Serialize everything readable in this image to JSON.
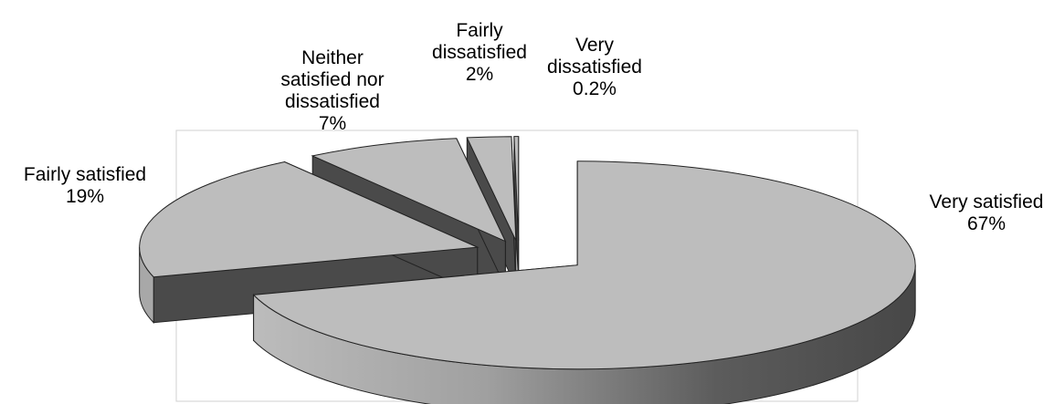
{
  "chart_data": {
    "type": "pie",
    "style": "3d-exploded",
    "categories": [
      "Very satisfied",
      "Fairly satisfied",
      "Neither satisfied nor dissatisfied",
      "Fairly dissatisfied",
      "Very dissatisfied"
    ],
    "values": [
      67,
      19,
      7,
      2,
      0.2
    ],
    "labels": [
      {
        "lines": [
          "Very satisfied"
        ],
        "value": "67%"
      },
      {
        "lines": [
          "Fairly satisfied"
        ],
        "value": "19%"
      },
      {
        "lines": [
          "Neither",
          "satisfied nor",
          "dissatisfied"
        ],
        "value": "7%"
      },
      {
        "lines": [
          "Fairly",
          "dissatisfied"
        ],
        "value": "2%"
      },
      {
        "lines": [
          "Very",
          "dissatisfied"
        ],
        "value": "0.2%"
      }
    ],
    "title": "",
    "legend": "none",
    "colors": {
      "top": "#bdbdbd",
      "side_dark": "#4a4a4a",
      "side_light": "#a8a8a8",
      "edge": "#222222",
      "frame": "#d0d0d0"
    }
  }
}
